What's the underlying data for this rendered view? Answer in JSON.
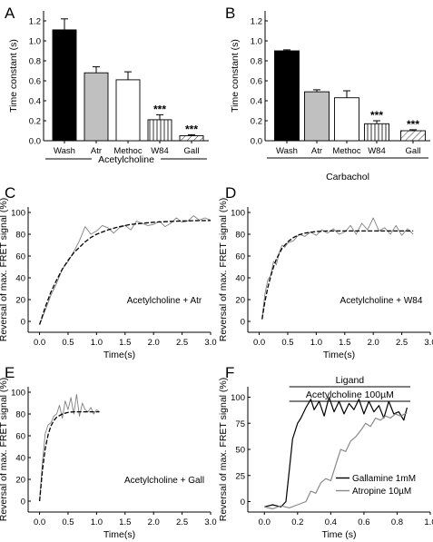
{
  "chart_data": [
    {
      "panel": "A",
      "type": "bar",
      "categories": [
        "Wash",
        "Atr",
        "Methoc",
        "W84",
        "Gall"
      ],
      "values": [
        1.11,
        0.68,
        0.61,
        0.21,
        0.05
      ],
      "errors": [
        0.11,
        0.06,
        0.08,
        0.05,
        0.01
      ],
      "significance": [
        "",
        "",
        "",
        "***",
        "***"
      ],
      "bar_fills": [
        "solid-black",
        "solid-gray",
        "white",
        "vertical-hatch",
        "diagonal-hatch"
      ],
      "ylabel": "Time constant (s)",
      "group_label": "Acetylcholine",
      "ylim": [
        0,
        1.3
      ],
      "yticks": [
        "0.0",
        "0.2",
        "0.4",
        "0.6",
        "0.8",
        "1.0",
        "1.2"
      ]
    },
    {
      "panel": "B",
      "type": "bar",
      "categories": [
        "Wash",
        "Atr",
        "Methoc",
        "W84",
        "Gall"
      ],
      "values": [
        0.9,
        0.49,
        0.43,
        0.17,
        0.1
      ],
      "errors": [
        0.01,
        0.02,
        0.07,
        0.03,
        0.01
      ],
      "significance": [
        "",
        "",
        "",
        "***",
        "***"
      ],
      "bar_fills": [
        "solid-black",
        "solid-gray",
        "white",
        "vertical-hatch",
        "diagonal-hatch"
      ],
      "ylabel": "Time constant (s)",
      "group_label": "Carbachol",
      "ylim": [
        0,
        1.3
      ],
      "yticks": [
        "0.0",
        "0.2",
        "0.4",
        "0.6",
        "0.8",
        "1.0",
        "1.2"
      ]
    },
    {
      "panel": "C",
      "type": "line",
      "annotation": "Acetylcholine + Atr",
      "xlabel": "Time(s)",
      "ylabel": "Reversal of max. FRET signal (%)",
      "xlim": [
        -0.2,
        3.0
      ],
      "ylim": [
        -10,
        105
      ],
      "xticks": [
        "0.0",
        "0.5",
        "1.0",
        "1.5",
        "2.0",
        "2.5",
        "3.0"
      ],
      "yticks": [
        "0",
        "20",
        "40",
        "60",
        "80",
        "100"
      ],
      "series": [
        {
          "style": "gray-noisy-trace",
          "x": [
            0.0,
            0.1,
            0.2,
            0.3,
            0.4,
            0.5,
            0.6,
            0.7,
            0.8,
            0.9,
            1.0,
            1.1,
            1.2,
            1.3,
            1.4,
            1.5,
            1.6,
            1.7,
            1.8,
            1.9,
            2.0,
            2.1,
            2.2,
            2.3,
            2.4,
            2.5,
            2.6,
            2.7,
            2.8,
            2.9,
            3.0
          ],
          "y": [
            -3,
            10,
            24,
            35,
            48,
            55,
            64,
            74,
            87,
            80,
            83,
            88,
            86,
            81,
            86,
            88,
            84,
            92,
            90,
            88,
            89,
            92,
            87,
            90,
            95,
            91,
            92,
            97,
            93,
            95,
            93
          ]
        },
        {
          "style": "black-dashed-fit",
          "x": [
            0.0,
            0.1,
            0.2,
            0.3,
            0.4,
            0.5,
            0.6,
            0.7,
            0.8,
            0.9,
            1.0,
            1.2,
            1.4,
            1.6,
            1.8,
            2.0,
            2.2,
            2.4,
            2.6,
            2.8,
            3.0
          ],
          "y": [
            -3,
            13,
            27,
            38,
            48,
            56,
            63,
            68,
            73,
            77,
            80,
            84,
            87,
            89,
            90,
            91,
            91.5,
            92,
            92.3,
            92.5,
            92.6
          ]
        }
      ]
    },
    {
      "panel": "D",
      "type": "line",
      "annotation": "Acetylcholine + W84",
      "xlabel": "Time(s)",
      "ylabel": "Reversal of max. FRET signal (%)",
      "xlim": [
        -0.2,
        3.0
      ],
      "ylim": [
        -10,
        105
      ],
      "xticks": [
        "0.0",
        "0.5",
        "1.0",
        "1.5",
        "2.0",
        "2.5",
        "3.0"
      ],
      "yticks": [
        "0",
        "20",
        "40",
        "60",
        "80",
        "100"
      ],
      "series": [
        {
          "style": "gray-noisy-trace",
          "x": [
            0.05,
            0.1,
            0.15,
            0.2,
            0.25,
            0.3,
            0.35,
            0.4,
            0.45,
            0.5,
            0.6,
            0.7,
            0.8,
            0.9,
            1.0,
            1.1,
            1.2,
            1.3,
            1.4,
            1.5,
            1.6,
            1.7,
            1.8,
            1.9,
            2.0,
            2.1,
            2.2,
            2.3,
            2.4,
            2.5,
            2.6,
            2.7
          ],
          "y": [
            2,
            25,
            38,
            42,
            55,
            52,
            63,
            70,
            68,
            72,
            74,
            80,
            78,
            82,
            79,
            84,
            81,
            85,
            80,
            82,
            88,
            80,
            90,
            84,
            95,
            83,
            86,
            80,
            88,
            79,
            85,
            80
          ]
        },
        {
          "style": "black-dashed-fit",
          "x": [
            0.05,
            0.1,
            0.15,
            0.2,
            0.25,
            0.3,
            0.4,
            0.5,
            0.6,
            0.7,
            0.8,
            1.0,
            1.2,
            1.4,
            1.6,
            1.8,
            2.0,
            2.2,
            2.4,
            2.7
          ],
          "y": [
            2,
            18,
            31,
            41,
            50,
            57,
            67,
            73,
            77,
            79.5,
            81,
            82.5,
            83,
            83,
            83,
            83,
            83,
            83,
            83,
            83
          ]
        }
      ]
    },
    {
      "panel": "E",
      "type": "line",
      "annotation": "Acetylcholine + Gall",
      "xlabel": "Time(s)",
      "ylabel": "Reversal of max. FRET signal (%)",
      "xlim": [
        -0.2,
        3.0
      ],
      "ylim": [
        -10,
        105
      ],
      "xticks": [
        "0.0",
        "0.5",
        "1.0",
        "1.5",
        "2.0",
        "2.5",
        "3.0"
      ],
      "yticks": [
        "0",
        "20",
        "40",
        "60",
        "80",
        "100"
      ],
      "series": [
        {
          "style": "gray-noisy-trace",
          "x": [
            0.0,
            0.05,
            0.1,
            0.15,
            0.2,
            0.25,
            0.3,
            0.35,
            0.4,
            0.45,
            0.5,
            0.55,
            0.6,
            0.65,
            0.7,
            0.75,
            0.8,
            0.85,
            0.9,
            0.95,
            1.0,
            1.05
          ],
          "y": [
            0,
            35,
            62,
            70,
            72,
            78,
            80,
            88,
            76,
            92,
            84,
            95,
            80,
            98,
            78,
            90,
            84,
            82,
            86,
            80,
            84,
            82
          ]
        },
        {
          "style": "black-dashed-fit",
          "x": [
            0.0,
            0.05,
            0.1,
            0.15,
            0.2,
            0.25,
            0.3,
            0.4,
            0.5,
            0.6,
            0.8,
            1.05
          ],
          "y": [
            0,
            28,
            48,
            61,
            69,
            74,
            77,
            80,
            81.5,
            82,
            82,
            82
          ]
        }
      ]
    },
    {
      "panel": "F",
      "type": "line",
      "xlabel": "Time (s)",
      "ylabel": "Reversal of max. FRET signal (%)",
      "xlim": [
        -0.1,
        1.0
      ],
      "ylim": [
        -10,
        110
      ],
      "xticks": [
        "0.0",
        "0.2",
        "0.4",
        "0.6",
        "0.8",
        "1.0"
      ],
      "yticks": [
        "0",
        "25",
        "50",
        "75",
        "100"
      ],
      "bracket_labels": [
        "Ligand",
        "Acetylcholine 100µM"
      ],
      "series": [
        {
          "name": "Gallamine 1mM",
          "color": "#000000",
          "x": [
            0.0,
            0.05,
            0.1,
            0.13,
            0.15,
            0.17,
            0.2,
            0.22,
            0.25,
            0.28,
            0.3,
            0.33,
            0.36,
            0.39,
            0.42,
            0.45,
            0.48,
            0.51,
            0.54,
            0.57,
            0.6,
            0.63,
            0.66,
            0.69,
            0.72,
            0.75,
            0.78,
            0.81,
            0.84,
            0.86
          ],
          "y": [
            -5,
            -3,
            -5,
            0,
            30,
            60,
            75,
            80,
            90,
            98,
            88,
            96,
            82,
            100,
            86,
            96,
            84,
            94,
            88,
            98,
            84,
            96,
            86,
            92,
            80,
            96,
            84,
            86,
            78,
            90
          ]
        },
        {
          "name": "Atropine 10µM",
          "color": "#888888",
          "x": [
            0.0,
            0.05,
            0.1,
            0.15,
            0.2,
            0.25,
            0.28,
            0.31,
            0.34,
            0.37,
            0.4,
            0.43,
            0.46,
            0.49,
            0.52,
            0.55,
            0.58,
            0.61,
            0.64,
            0.67,
            0.7,
            0.73,
            0.76,
            0.79,
            0.82,
            0.86
          ],
          "y": [
            -5,
            -7,
            -4,
            -6,
            -3,
            0,
            10,
            8,
            18,
            22,
            20,
            35,
            50,
            48,
            58,
            62,
            68,
            75,
            72,
            80,
            78,
            82,
            80,
            84,
            82,
            85
          ]
        }
      ]
    }
  ]
}
